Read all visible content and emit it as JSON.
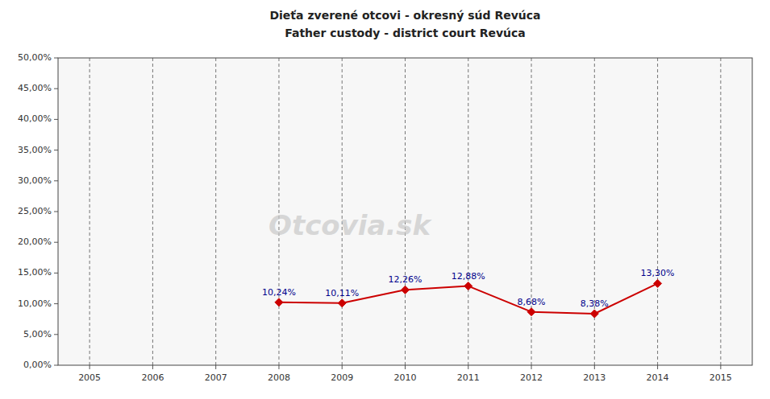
{
  "chart_data": {
    "type": "line",
    "title": "Dieťa zverené otcovi - okresný súd Revúca",
    "subtitle": "Father custody - district court Revúca",
    "annotations": [
      "Otcovia.sk"
    ],
    "x": [
      2008,
      2009,
      2010,
      2011,
      2012,
      2013,
      2014
    ],
    "values": [
      0.1024,
      0.1011,
      0.1226,
      0.1288,
      0.0868,
      0.0838,
      0.133
    ],
    "value_labels": [
      "10,24%",
      "10,11%",
      "12,26%",
      "12,88%",
      "8,68%",
      "8,38%",
      "13,30%"
    ],
    "data_labels": true,
    "color": "#cc0000",
    "marker": "diamond",
    "grid": "x",
    "xlim": [
      2004.5,
      2015.5
    ],
    "xticks": [
      2005,
      2006,
      2007,
      2008,
      2009,
      2010,
      2011,
      2012,
      2013,
      2014,
      2015
    ],
    "ylim": [
      0.0,
      0.5
    ],
    "yticks": [
      {
        "value": 0.0,
        "label": "0,00%"
      },
      {
        "value": 0.05,
        "label": "5,00%"
      },
      {
        "value": 0.1,
        "label": "10,00%"
      },
      {
        "value": 0.15,
        "label": "15,00%"
      },
      {
        "value": 0.2,
        "label": "20,00%"
      },
      {
        "value": 0.25,
        "label": "25,00%"
      },
      {
        "value": 0.3,
        "label": "30,00%"
      },
      {
        "value": 0.35,
        "label": "35,00%"
      },
      {
        "value": 0.4,
        "label": "40,00%"
      },
      {
        "value": 0.45,
        "label": "45,00%"
      },
      {
        "value": 0.5,
        "label": "50,00%"
      }
    ]
  }
}
